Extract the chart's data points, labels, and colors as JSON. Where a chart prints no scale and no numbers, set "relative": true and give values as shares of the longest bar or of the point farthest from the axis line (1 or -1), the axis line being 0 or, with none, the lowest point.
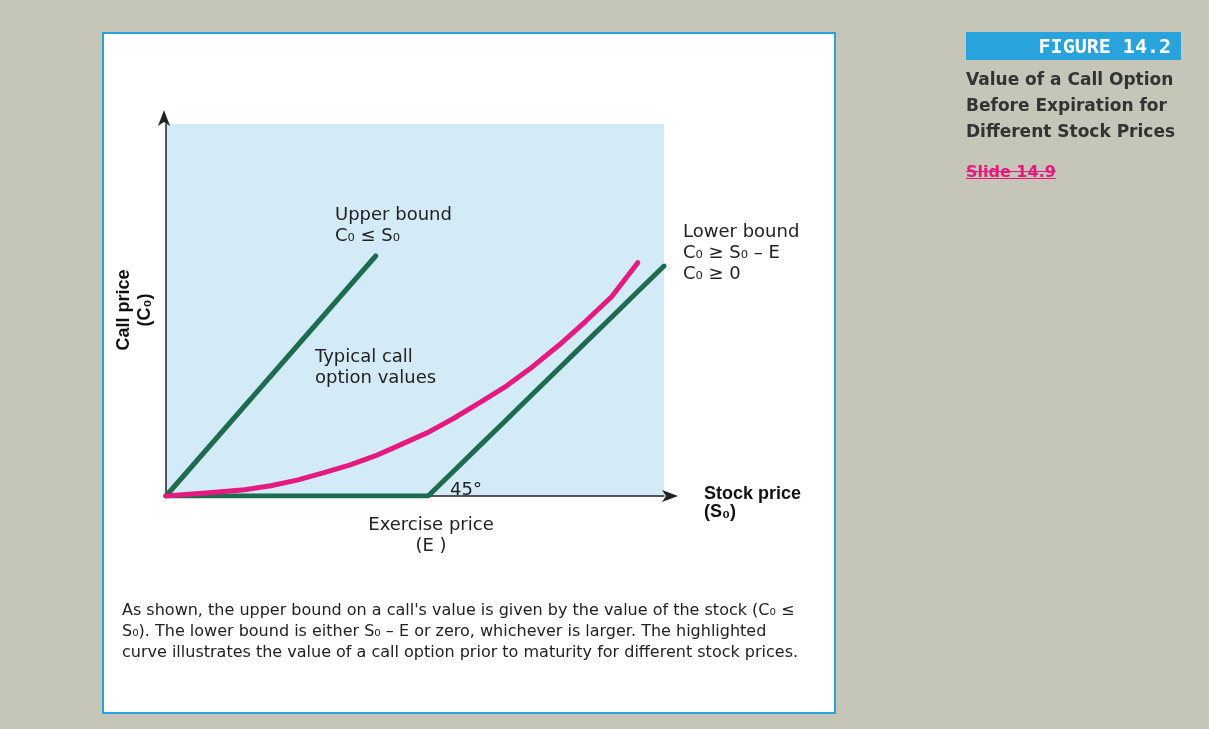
{
  "chart_data": {
    "type": "line",
    "title": "FIGURE 14.2",
    "subtitle": "Value of a Call Option Before Expiration for Different Stock Prices",
    "xlabel": "Stock price\n(S₀)",
    "ylabel": "Call price\n(C₀)",
    "relative": true,
    "grid": false,
    "marker": "none",
    "line_style": "solid",
    "categories": [
      null,
      null,
      null,
      null,
      null,
      null,
      null,
      null,
      null,
      null,
      null,
      null,
      null,
      null,
      null,
      null,
      null,
      null,
      null,
      null
    ],
    "series": [
      {
        "color": "#1e6b50",
        "values": [
          0,
          0.125,
          0.25,
          0.375,
          0.5,
          0.625,
          0.75,
          0.875,
          1,
          null,
          null,
          null,
          null,
          null,
          null,
          null,
          null,
          null,
          null,
          null
        ]
      },
      {
        "color": "#1e6b50",
        "values": [
          0,
          0,
          0,
          0,
          0,
          0,
          0,
          0,
          0,
          0,
          0,
          0.106,
          0.213,
          0.319,
          0.426,
          0.532,
          0.639,
          0.745,
          0.852,
          0.958
        ]
      },
      {
        "color": "#e5197f",
        "values": [
          0,
          0.008,
          0.017,
          0.026,
          0.043,
          0.066,
          0.096,
          0.129,
          0.168,
          0.216,
          0.265,
          0.325,
          0.391,
          0.459,
          0.54,
          0.629,
          0.727,
          0.83,
          0.972,
          null
        ]
      }
    ],
    "annotations": [
      "Upper bound\nC₀ ≤ S₀",
      "Lower bound\nC₀ ≥ S₀ – E\nC₀ ≥ 0",
      "Typical call\noption values",
      "45°",
      "Exercise price\n(E )",
      "Slide 14.9",
      "As shown, the upper bound on a call's value is given by the value of the stock (C₀ ≤ S₀). The lower bound is either S₀ – E or zero, whichever is larger. The highlighted curve illustrates the value of a call option prior to maturity for different stock prices."
    ]
  }
}
